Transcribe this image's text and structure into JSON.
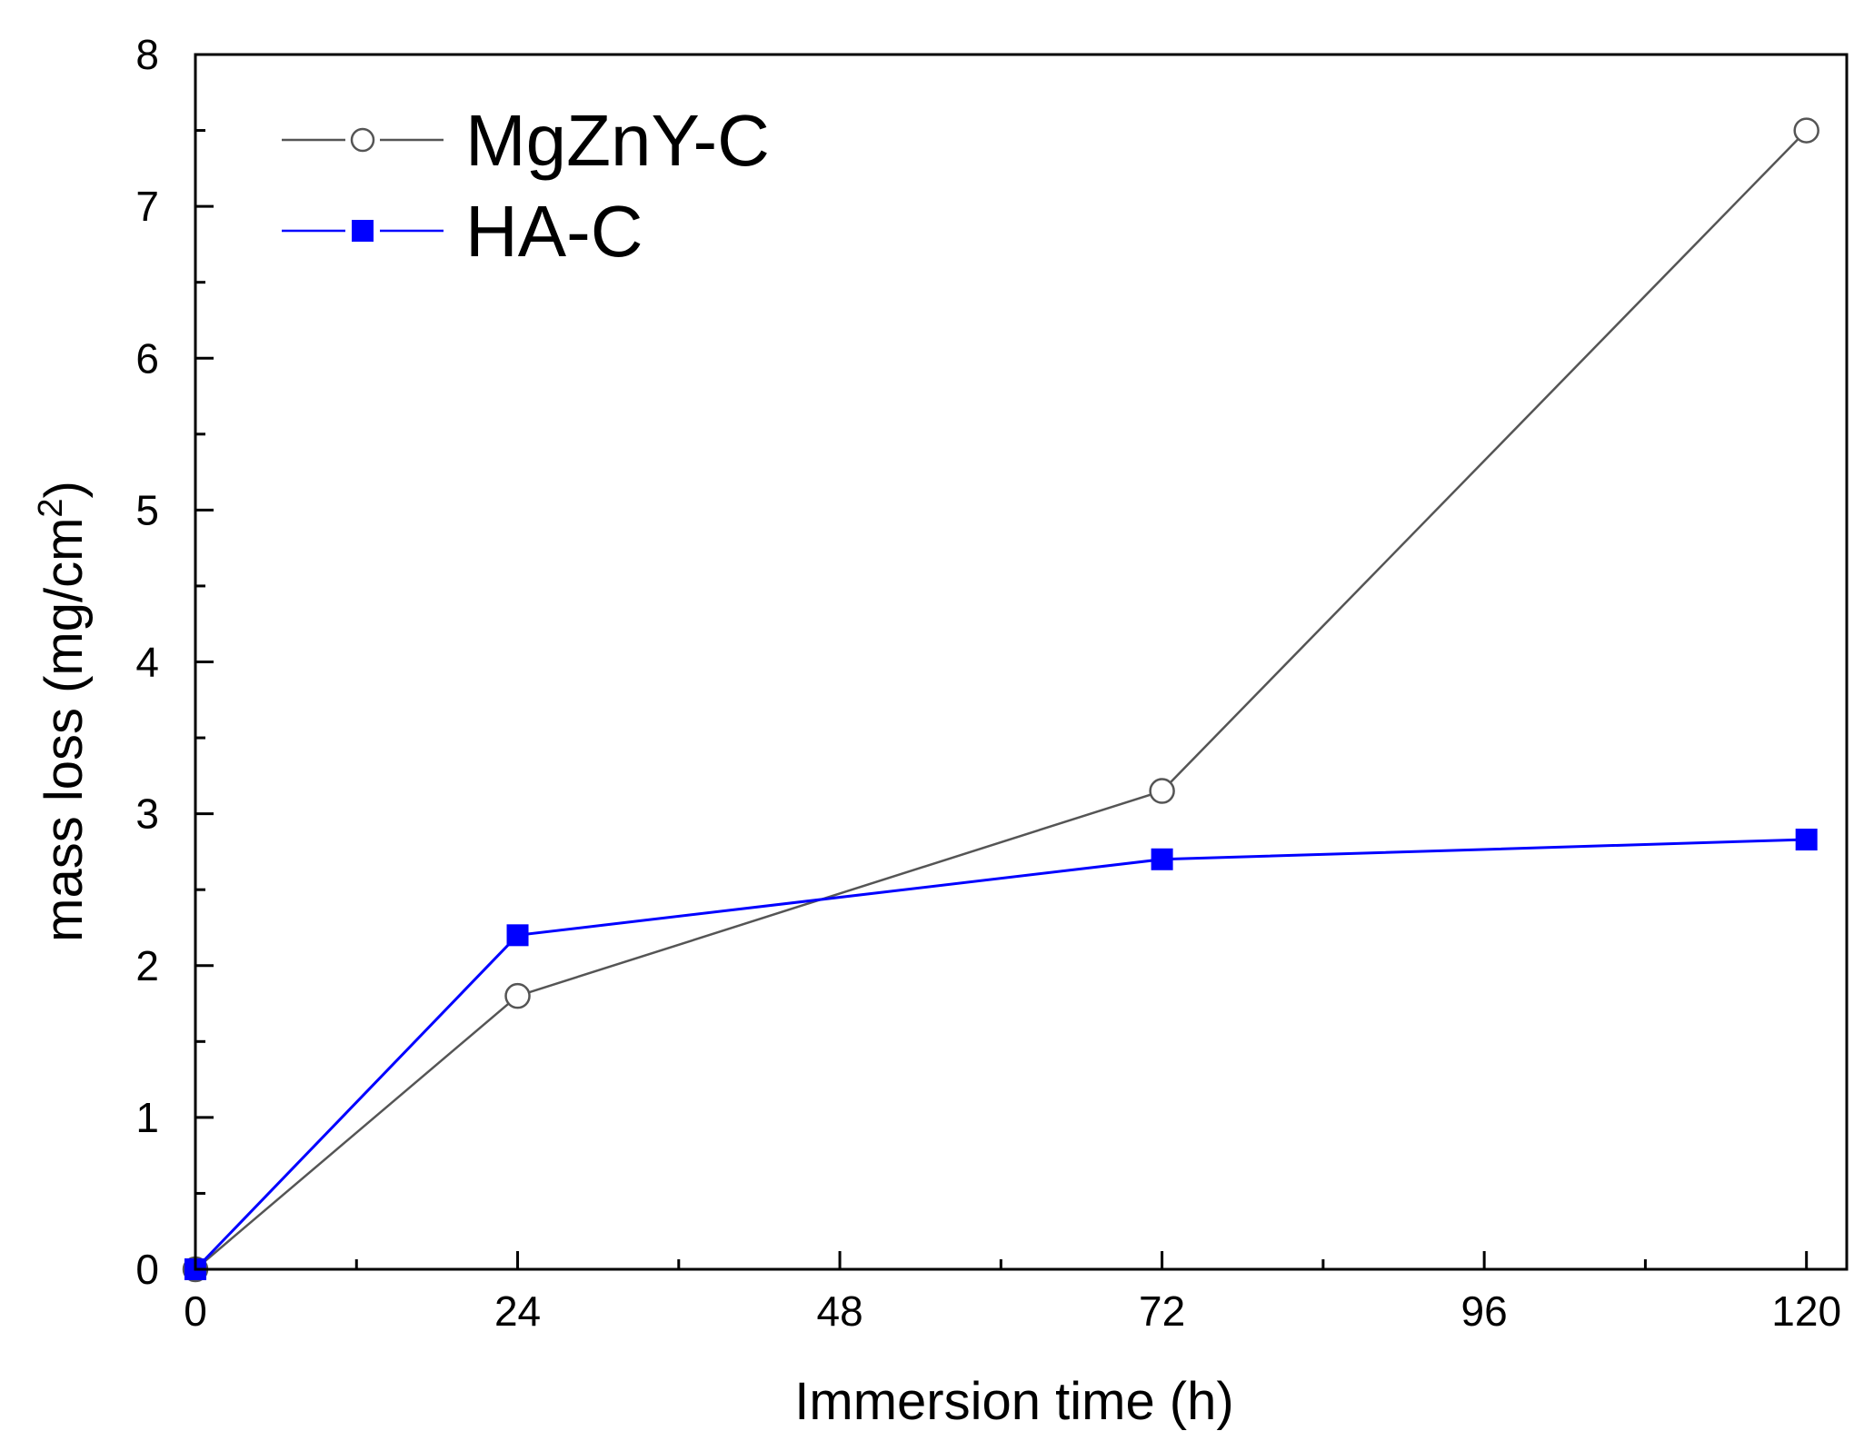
{
  "chart_data": {
    "type": "line",
    "title": "",
    "xlabel": "Immersion time (h)",
    "ylabel_main": "mass loss (mg/cm",
    "ylabel_sup": "2",
    "ylabel_close": ")",
    "xlim": [
      0,
      123
    ],
    "ylim": [
      0,
      8
    ],
    "xticks": [
      0,
      24,
      48,
      72,
      96,
      120
    ],
    "xminor": [
      12,
      36,
      60,
      84,
      108
    ],
    "yticks": [
      0,
      1,
      2,
      3,
      4,
      5,
      6,
      7,
      8
    ],
    "yminor": [
      0.5,
      1.5,
      2.5,
      3.5,
      4.5,
      5.5,
      6.5,
      7.5
    ],
    "legend_position": "top-left",
    "series": [
      {
        "name": "MgZnY-C",
        "color": "#555555",
        "marker": "open-circle",
        "x": [
          0,
          24,
          72,
          120
        ],
        "y": [
          0,
          1.8,
          3.15,
          7.5
        ]
      },
      {
        "name": "HA-C",
        "color": "#0000ff",
        "marker": "filled-square",
        "x": [
          0,
          24,
          72,
          120
        ],
        "y": [
          0,
          2.2,
          2.7,
          2.83
        ]
      }
    ]
  }
}
